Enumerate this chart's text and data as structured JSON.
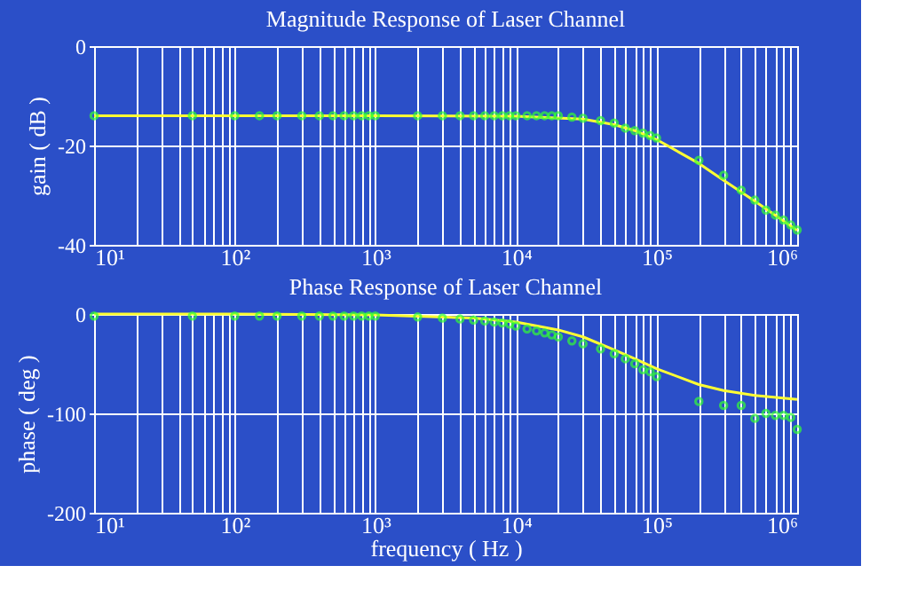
{
  "chart_data": [
    {
      "type": "line",
      "title": "Magnitude Response of Laser Channel",
      "ylabel": "gain ( dB )",
      "log": "x",
      "grid": true,
      "xlim": [
        10,
        1000000
      ],
      "ylim": [
        -40,
        0
      ],
      "yticks": [
        -40,
        -20,
        0
      ],
      "xticks": [
        {
          "value": 10,
          "label": "10¹"
        },
        {
          "value": 20,
          "label": null
        },
        {
          "value": 30,
          "label": null
        },
        {
          "value": 40,
          "label": null
        },
        {
          "value": 50,
          "label": null
        },
        {
          "value": 60,
          "label": null
        },
        {
          "value": 70,
          "label": null
        },
        {
          "value": 80,
          "label": null
        },
        {
          "value": 90,
          "label": null
        },
        {
          "value": 100,
          "label": "10²"
        },
        {
          "value": 200,
          "label": null
        },
        {
          "value": 300,
          "label": null
        },
        {
          "value": 400,
          "label": null
        },
        {
          "value": 500,
          "label": null
        },
        {
          "value": 600,
          "label": null
        },
        {
          "value": 700,
          "label": null
        },
        {
          "value": 800,
          "label": null
        },
        {
          "value": 900,
          "label": null
        },
        {
          "value": 1000,
          "label": "10³"
        },
        {
          "value": 2000,
          "label": null
        },
        {
          "value": 3000,
          "label": null
        },
        {
          "value": 4000,
          "label": null
        },
        {
          "value": 5000,
          "label": null
        },
        {
          "value": 6000,
          "label": null
        },
        {
          "value": 7000,
          "label": null
        },
        {
          "value": 8000,
          "label": null
        },
        {
          "value": 9000,
          "label": null
        },
        {
          "value": 10000,
          "label": "10⁴"
        },
        {
          "value": 20000,
          "label": null
        },
        {
          "value": 30000,
          "label": null
        },
        {
          "value": 40000,
          "label": null
        },
        {
          "value": 50000,
          "label": null
        },
        {
          "value": 60000,
          "label": null
        },
        {
          "value": 70000,
          "label": null
        },
        {
          "value": 80000,
          "label": null
        },
        {
          "value": 90000,
          "label": null
        },
        {
          "value": 100000,
          "label": "10⁵"
        },
        {
          "value": 200000,
          "label": null
        },
        {
          "value": 300000,
          "label": null
        },
        {
          "value": 400000,
          "label": null
        },
        {
          "value": 500000,
          "label": null
        },
        {
          "value": 600000,
          "label": null
        },
        {
          "value": 700000,
          "label": null
        },
        {
          "value": 800000,
          "label": null
        },
        {
          "value": 900000,
          "label": null
        },
        {
          "value": 1000000,
          "label": "10⁶"
        }
      ],
      "series": [
        {
          "type": "line",
          "color": "#ffff33",
          "line_style": "solid",
          "x": [
            10,
            1000,
            10000,
            30000,
            50000,
            70000,
            100000,
            200000,
            300000,
            500000,
            1000000
          ],
          "values": [
            -14,
            -14,
            -14.1,
            -14.7,
            -15.8,
            -17,
            -18.8,
            -23.6,
            -27,
            -31.2,
            -37.1
          ]
        },
        {
          "type": "scatter",
          "color": "#33ff33",
          "marker": "circle",
          "x": [
            10,
            50,
            100,
            150,
            200,
            300,
            400,
            500,
            600,
            700,
            800,
            900,
            1000,
            2000,
            3000,
            4000,
            5000,
            6000,
            7000,
            8000,
            9000,
            10000,
            12000,
            14000,
            16000,
            18000,
            20000,
            25000,
            30000,
            40000,
            50000,
            60000,
            70000,
            80000,
            90000,
            100000,
            200000,
            300000,
            400000,
            500000,
            600000,
            700000,
            800000,
            900000,
            1000000
          ],
          "values": [
            -14,
            -14,
            -14,
            -14,
            -14,
            -14,
            -14,
            -14,
            -14,
            -14,
            -14,
            -14,
            -14,
            -14,
            -14,
            -14,
            -14,
            -14,
            -14,
            -14,
            -14,
            -14,
            -14,
            -14,
            -14,
            -14,
            -14,
            -14.3,
            -14.5,
            -15,
            -15.5,
            -16.5,
            -17,
            -17.5,
            -18,
            -18.5,
            -23,
            -26,
            -29,
            -31,
            -33,
            -34,
            -35,
            -36,
            -37
          ]
        }
      ]
    },
    {
      "type": "line",
      "title": "Phase Response of Laser Channel",
      "xlabel": "frequency ( Hz )",
      "ylabel": "phase ( deg )",
      "log": "x",
      "grid": true,
      "xlim": [
        10,
        1000000
      ],
      "ylim": [
        -200,
        0
      ],
      "yticks": [
        -200,
        -100,
        0
      ],
      "xticks": [
        {
          "value": 10,
          "label": "10¹"
        },
        {
          "value": 20,
          "label": null
        },
        {
          "value": 30,
          "label": null
        },
        {
          "value": 40,
          "label": null
        },
        {
          "value": 50,
          "label": null
        },
        {
          "value": 60,
          "label": null
        },
        {
          "value": 70,
          "label": null
        },
        {
          "value": 80,
          "label": null
        },
        {
          "value": 90,
          "label": null
        },
        {
          "value": 100,
          "label": "10²"
        },
        {
          "value": 200,
          "label": null
        },
        {
          "value": 300,
          "label": null
        },
        {
          "value": 400,
          "label": null
        },
        {
          "value": 500,
          "label": null
        },
        {
          "value": 600,
          "label": null
        },
        {
          "value": 700,
          "label": null
        },
        {
          "value": 800,
          "label": null
        },
        {
          "value": 900,
          "label": null
        },
        {
          "value": 1000,
          "label": "10³"
        },
        {
          "value": 2000,
          "label": null
        },
        {
          "value": 3000,
          "label": null
        },
        {
          "value": 4000,
          "label": null
        },
        {
          "value": 5000,
          "label": null
        },
        {
          "value": 6000,
          "label": null
        },
        {
          "value": 7000,
          "label": null
        },
        {
          "value": 8000,
          "label": null
        },
        {
          "value": 9000,
          "label": null
        },
        {
          "value": 10000,
          "label": "10⁴"
        },
        {
          "value": 20000,
          "label": null
        },
        {
          "value": 30000,
          "label": null
        },
        {
          "value": 40000,
          "label": null
        },
        {
          "value": 50000,
          "label": null
        },
        {
          "value": 60000,
          "label": null
        },
        {
          "value": 70000,
          "label": null
        },
        {
          "value": 80000,
          "label": null
        },
        {
          "value": 90000,
          "label": null
        },
        {
          "value": 100000,
          "label": "10⁵"
        },
        {
          "value": 200000,
          "label": null
        },
        {
          "value": 300000,
          "label": null
        },
        {
          "value": 400000,
          "label": null
        },
        {
          "value": 500000,
          "label": null
        },
        {
          "value": 600000,
          "label": null
        },
        {
          "value": 700000,
          "label": null
        },
        {
          "value": 800000,
          "label": null
        },
        {
          "value": 900000,
          "label": null
        },
        {
          "value": 1000000,
          "label": "10⁶"
        }
      ],
      "series": [
        {
          "type": "line",
          "color": "#ffff33",
          "line_style": "solid",
          "x": [
            10,
            100,
            1000,
            5000,
            10000,
            20000,
            30000,
            50000,
            70000,
            100000,
            200000,
            300000,
            500000,
            1000000
          ],
          "values": [
            0,
            0,
            -1,
            -4,
            -8,
            -16,
            -23,
            -36,
            -45,
            -55,
            -71,
            -77,
            -82,
            -86
          ]
        },
        {
          "type": "scatter",
          "color": "#33ff33",
          "marker": "circle",
          "x": [
            10,
            50,
            100,
            150,
            200,
            300,
            400,
            500,
            600,
            700,
            800,
            900,
            1000,
            2000,
            3000,
            4000,
            5000,
            6000,
            7000,
            8000,
            9000,
            10000,
            12000,
            14000,
            16000,
            18000,
            20000,
            25000,
            30000,
            40000,
            50000,
            60000,
            70000,
            80000,
            90000,
            100000,
            200000,
            300000,
            400000,
            500000,
            600000,
            700000,
            800000,
            900000,
            1000000
          ],
          "values": [
            -2,
            -2,
            -2,
            -2,
            -2,
            -2,
            -2,
            -2,
            -2,
            -2,
            -2,
            -2,
            -2,
            -3,
            -4,
            -5,
            -6,
            -7,
            -8,
            -9,
            -10,
            -12,
            -15,
            -17,
            -19,
            -21,
            -23,
            -27,
            -30,
            -35,
            -40,
            -45,
            -50,
            -56,
            -58,
            -63,
            -88,
            -92,
            -92,
            -105,
            -100,
            -102,
            -102,
            -104,
            -116
          ]
        }
      ]
    }
  ]
}
